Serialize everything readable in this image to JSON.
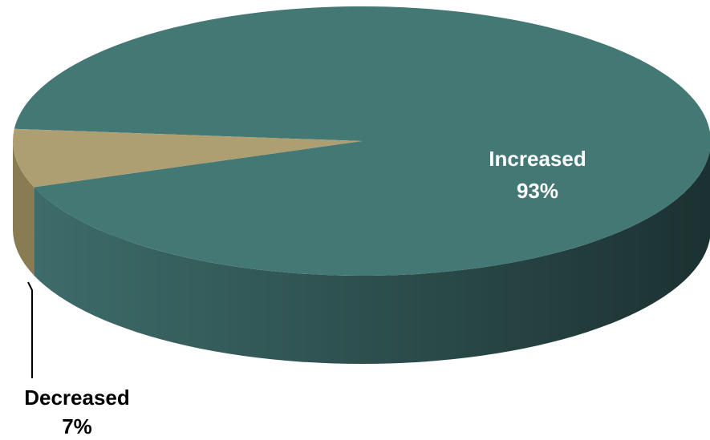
{
  "chart_data": {
    "type": "pie",
    "style": "3d",
    "title": "",
    "slices": [
      {
        "label": "Increased",
        "value": 93,
        "display": "93%",
        "color": "#437875",
        "side_dark": "#1c3131",
        "label_color": "#ffffff",
        "label_placement": "inside"
      },
      {
        "label": "Decreased",
        "value": 7,
        "display": "7%",
        "color": "#ae9f72",
        "side_dark": "#8a7c52",
        "label_color": "#000000",
        "label_placement": "outside-leader"
      }
    ],
    "legend": "none"
  }
}
